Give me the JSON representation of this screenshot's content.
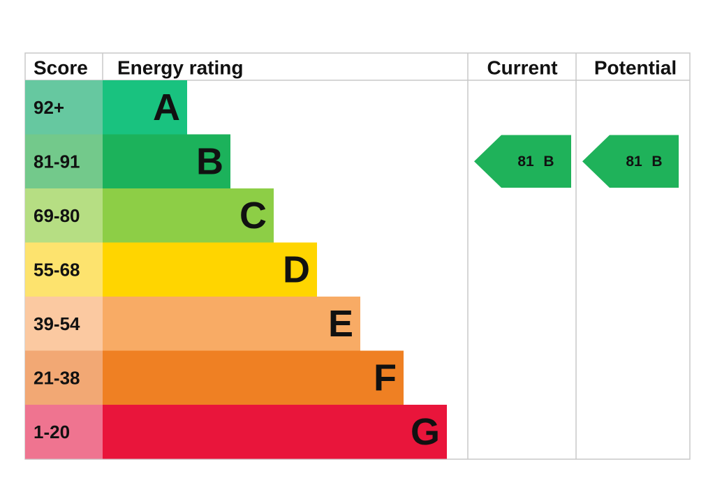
{
  "header": {
    "score": "Score",
    "rating": "Energy rating",
    "current": "Current",
    "potential": "Potential"
  },
  "rows": [
    {
      "score": "92+",
      "letter": "A"
    },
    {
      "score": "81-91",
      "letter": "B"
    },
    {
      "score": "69-80",
      "letter": "C"
    },
    {
      "score": "55-68",
      "letter": "D"
    },
    {
      "score": "39-54",
      "letter": "E"
    },
    {
      "score": "21-38",
      "letter": "F"
    },
    {
      "score": "1-20",
      "letter": "G"
    }
  ],
  "current": {
    "score": 81,
    "letter": "B"
  },
  "potential": {
    "score": 81,
    "letter": "B"
  }
}
